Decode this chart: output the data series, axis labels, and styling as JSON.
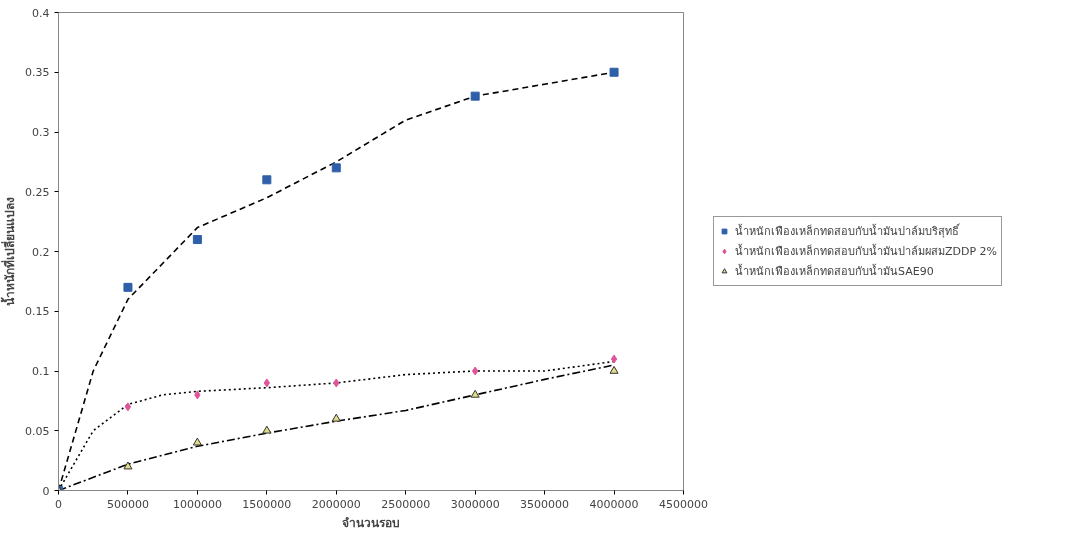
{
  "chart_data": {
    "type": "scatter",
    "xlabel": "จำนวนรอบ",
    "ylabel": "น้ำหนักที่เปลี่ยนแปลง",
    "xlim": [
      0,
      4500000
    ],
    "xticks": [
      0,
      500000,
      1000000,
      1500000,
      2000000,
      2500000,
      3000000,
      3500000,
      4000000,
      4500000
    ],
    "ylim": [
      0,
      0.4
    ],
    "yticks": [
      0,
      0.05,
      0.1,
      0.15,
      0.2,
      0.25,
      0.3,
      0.35,
      0.4
    ],
    "grid": false,
    "legend": "right",
    "x": [
      0,
      500000,
      1000000,
      1500000,
      2000000,
      3000000,
      4000000
    ],
    "series": [
      {
        "name": "น้ำหนักเฟืองเหล็กทดสอบกับน้ำมันปาล์มบริสุทธิ์",
        "color": "#2e5fa8",
        "marker": "square",
        "values": [
          0,
          0.17,
          0.21,
          0.26,
          0.27,
          0.33,
          0.35
        ]
      },
      {
        "name": "น้ำหนักเฟืองเหล็กทดสอบกับน้ำมันปาล์มผสมZDDP 2%",
        "color": "#e0559a",
        "marker": "diamond",
        "values": [
          null,
          0.07,
          0.08,
          0.09,
          0.09,
          0.1,
          0.11
        ]
      },
      {
        "name": "น้ำหนักเฟืองเหล็กทดสอบกับน้ำมันSAE90",
        "color": "#e2dc8a",
        "marker": "triangle",
        "values": [
          0,
          0.02,
          0.04,
          0.05,
          0.06,
          0.08,
          0.1
        ]
      },
      {
        "type": "line",
        "color": "#000000",
        "line_style": "dashed",
        "x": [
          0,
          250000,
          500000,
          1000000,
          1500000,
          2000000,
          2500000,
          3000000,
          3500000,
          4000000
        ],
        "values": [
          0,
          0.1,
          0.16,
          0.22,
          0.245,
          0.275,
          0.31,
          0.33,
          0.34,
          0.35
        ]
      },
      {
        "type": "line",
        "color": "#000000",
        "line_style": "dotted",
        "x": [
          0,
          250000,
          500000,
          750000,
          1000000,
          1500000,
          2000000,
          2500000,
          3000000,
          3500000,
          4000000
        ],
        "values": [
          0,
          0.05,
          0.072,
          0.08,
          0.083,
          0.086,
          0.09,
          0.097,
          0.1,
          0.1,
          0.108
        ]
      },
      {
        "type": "line",
        "color": "#000000",
        "line_style": "dashdot",
        "x": [
          0,
          500000,
          1000000,
          1500000,
          2000000,
          2500000,
          3000000,
          3500000,
          4000000
        ],
        "values": [
          0,
          0.022,
          0.037,
          0.048,
          0.058,
          0.067,
          0.08,
          0.093,
          0.105
        ]
      }
    ]
  }
}
